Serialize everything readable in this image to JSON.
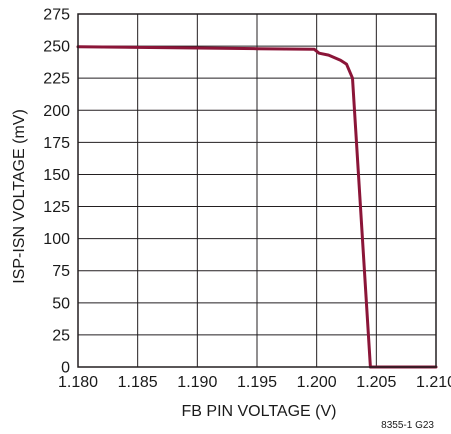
{
  "chart_data": {
    "type": "line",
    "xlabel": "FB PIN VOLTAGE (V)",
    "ylabel": "ISP-ISN VOLTAGE (mV)",
    "xlim": [
      1.18,
      1.21
    ],
    "ylim": [
      0,
      275
    ],
    "x_ticks": [
      1.18,
      1.185,
      1.19,
      1.195,
      1.2,
      1.205,
      1.21
    ],
    "x_tick_labels": [
      "1.180",
      "1.185",
      "1.190",
      "1.195",
      "1.200",
      "1.205",
      "1.210"
    ],
    "y_ticks": [
      0,
      25,
      50,
      75,
      100,
      125,
      150,
      175,
      200,
      225,
      250,
      275
    ],
    "y_tick_labels": [
      "0",
      "25",
      "50",
      "75",
      "100",
      "125",
      "150",
      "175",
      "200",
      "225",
      "250",
      "275"
    ],
    "grid": true,
    "series": [
      {
        "color": "#8b1538",
        "x": [
          1.18,
          1.185,
          1.19,
          1.195,
          1.1998,
          1.2002,
          1.201,
          1.202,
          1.2025,
          1.203,
          1.2045,
          1.21
        ],
        "y": [
          249.5,
          249,
          248.5,
          248,
          247.5,
          244.5,
          243,
          239,
          236,
          225,
          0,
          0
        ]
      }
    ],
    "figure_id": "8355-1 G23"
  }
}
